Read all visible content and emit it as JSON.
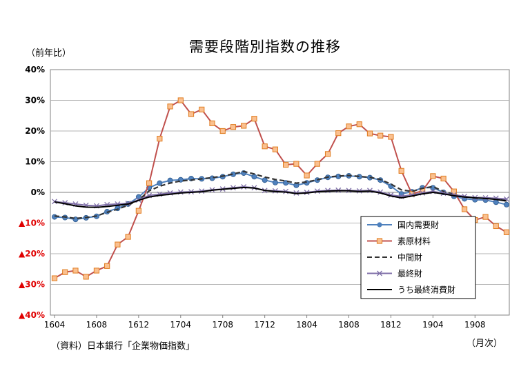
{
  "chart_data": {
    "type": "line",
    "title": "需要段階別指数の推移",
    "ylabel": "（前年比）",
    "xlabel": "（月次）",
    "source": "（資料）日本銀行「企業物価指数」",
    "ylim": [
      -40,
      40
    ],
    "yticks": [
      {
        "value": 40,
        "label": "40%"
      },
      {
        "value": 30,
        "label": "30%"
      },
      {
        "value": 20,
        "label": "20%"
      },
      {
        "value": 10,
        "label": "10%"
      },
      {
        "value": 0,
        "label": "0%"
      },
      {
        "value": -10,
        "label": "▲10%"
      },
      {
        "value": -20,
        "label": "▲20%"
      },
      {
        "value": -30,
        "label": "▲30%"
      },
      {
        "value": -40,
        "label": "▲40%"
      }
    ],
    "x": [
      "1604",
      "1605",
      "1606",
      "1607",
      "1608",
      "1609",
      "1610",
      "1611",
      "1612",
      "1701",
      "1702",
      "1703",
      "1704",
      "1705",
      "1706",
      "1707",
      "1708",
      "1709",
      "1710",
      "1711",
      "1712",
      "1801",
      "1802",
      "1803",
      "1804",
      "1805",
      "1806",
      "1807",
      "1808",
      "1809",
      "1810",
      "1811",
      "1812",
      "1901",
      "1902",
      "1903",
      "1904",
      "1905",
      "1906",
      "1907",
      "1908",
      "1909",
      "1910",
      "1911"
    ],
    "xtick_labels": [
      "1604",
      "1608",
      "1612",
      "1704",
      "1708",
      "1712",
      "1804",
      "1808",
      "1812",
      "1904",
      "1908"
    ],
    "grid": true,
    "legend_position": "bottom-right",
    "series": [
      {
        "name": "国内需要財",
        "style": "circle-line",
        "color": "#4f81bd",
        "values": [
          -8,
          -8.2,
          -8.8,
          -8.3,
          -7.8,
          -6.3,
          -5.2,
          -3.8,
          -1.5,
          1.5,
          3,
          3.9,
          4.1,
          4.5,
          4.4,
          4.6,
          5.1,
          5.9,
          6.3,
          5.1,
          4,
          3.2,
          3.1,
          2.3,
          3.1,
          4,
          4.9,
          5.2,
          5.4,
          5.1,
          4.8,
          4,
          2,
          -0.5,
          0.2,
          1.5,
          1.5,
          0,
          -1.3,
          -2.1,
          -2.4,
          -2.5,
          -3.2,
          -4
        ]
      },
      {
        "name": "素原材料",
        "style": "square-line",
        "color": "#c0504d",
        "marker_fill": "#fac090",
        "values": [
          -28,
          -26,
          -25.5,
          -27.5,
          -25.5,
          -24,
          -17,
          -14.5,
          -6,
          3,
          17.5,
          28,
          30,
          25.5,
          27,
          22.5,
          20,
          21.3,
          21.7,
          24,
          15,
          14,
          9,
          9.3,
          5.5,
          9.3,
          12.5,
          19.3,
          21.5,
          22.2,
          19.2,
          18.5,
          18.1,
          7,
          -0.5,
          0.5,
          5.3,
          4.5,
          0.3,
          -5.5,
          -9,
          -8,
          -11,
          -13
        ]
      },
      {
        "name": "中間財",
        "style": "dash",
        "color": "#333333",
        "values": [
          -7.7,
          -8,
          -8.5,
          -8.2,
          -7.7,
          -6.5,
          -5.5,
          -4.2,
          -2.5,
          0.5,
          2,
          3,
          3.7,
          4,
          4.4,
          4.8,
          5.3,
          6,
          6.8,
          6,
          5,
          4.2,
          3.7,
          3,
          3.4,
          4.1,
          5,
          5.3,
          5.5,
          5.2,
          4.9,
          4.2,
          2.7,
          0.8,
          0.3,
          1.3,
          1.9,
          0.3,
          -0.7,
          -1.5,
          -1.7,
          -1.8,
          -2,
          -2.5
        ]
      },
      {
        "name": "最終財",
        "style": "x-line",
        "color": "#7f6fa8",
        "values": [
          -3,
          -3.4,
          -3.8,
          -4.2,
          -4.4,
          -4,
          -3.8,
          -3.6,
          -2.5,
          -1,
          -0.6,
          -0.2,
          0.1,
          0.2,
          0.4,
          0.8,
          1.1,
          1.5,
          1.8,
          1.5,
          0.6,
          0.5,
          0.3,
          -0.2,
          0,
          0.4,
          0.6,
          0.7,
          0.6,
          0.5,
          0.6,
          0.1,
          -0.9,
          -1.3,
          -0.8,
          -0.2,
          0.3,
          -0.3,
          -0.8,
          -1.3,
          -1.7,
          -1.8,
          -1.9,
          -2.2
        ]
      },
      {
        "name": "うち最終消費財",
        "style": "solid",
        "color": "#000000",
        "values": [
          -3.1,
          -3.7,
          -4.4,
          -4.8,
          -4.9,
          -4.6,
          -4.2,
          -3.8,
          -2.6,
          -1.5,
          -1,
          -0.6,
          -0.2,
          0,
          0.2,
          0.7,
          1,
          1.3,
          1.6,
          1.4,
          0.6,
          0.3,
          0.1,
          -0.4,
          -0.2,
          0.2,
          0.4,
          0.5,
          0.5,
          0.3,
          0.4,
          -0.2,
          -1.2,
          -1.8,
          -1.2,
          -0.5,
          0,
          -0.5,
          -1.1,
          -1.5,
          -1.8,
          -2,
          -2.3,
          -2.8
        ]
      }
    ]
  }
}
